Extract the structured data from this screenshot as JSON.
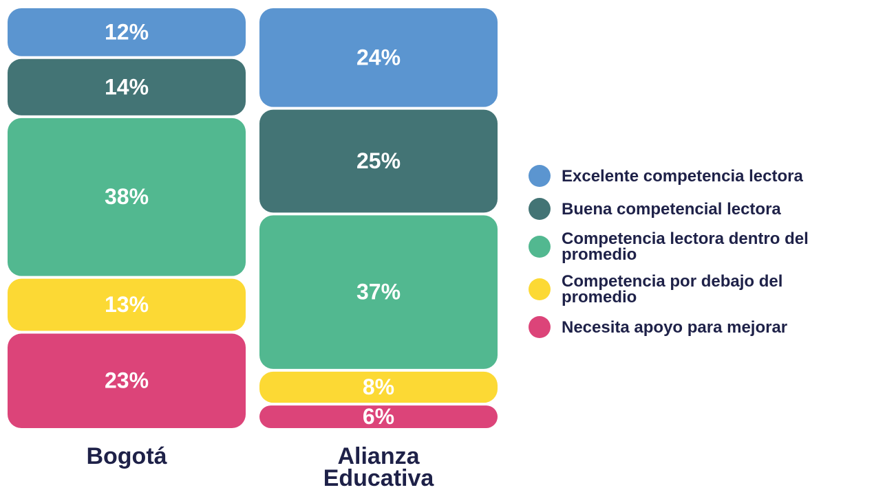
{
  "chart_data": {
    "type": "stacked_bar",
    "categories": [
      "Bogotá",
      "Alianza Educativa"
    ],
    "series": [
      {
        "name": "Excelente competencia lectora",
        "color": "#5b95d0",
        "values": [
          12,
          24
        ],
        "value_labels": [
          "12%",
          "24%"
        ]
      },
      {
        "name": "Buena competencial lectora",
        "color": "#437475",
        "values": [
          14,
          25
        ],
        "value_labels": [
          "14%",
          "25%"
        ]
      },
      {
        "name": "Competencia lectora dentro del promedio",
        "color": "#52b890",
        "values": [
          38,
          37
        ],
        "value_labels": [
          "38%",
          "37%"
        ]
      },
      {
        "name": "Competencia por debajo del promedio",
        "color": "#fcd934",
        "values": [
          13,
          8
        ],
        "value_labels": [
          "13%",
          "8%"
        ]
      },
      {
        "name": "Necesita apoyo para mejorar",
        "color": "#dc4479",
        "values": [
          23,
          6
        ],
        "value_labels": [
          "23%",
          "6%"
        ]
      }
    ]
  }
}
